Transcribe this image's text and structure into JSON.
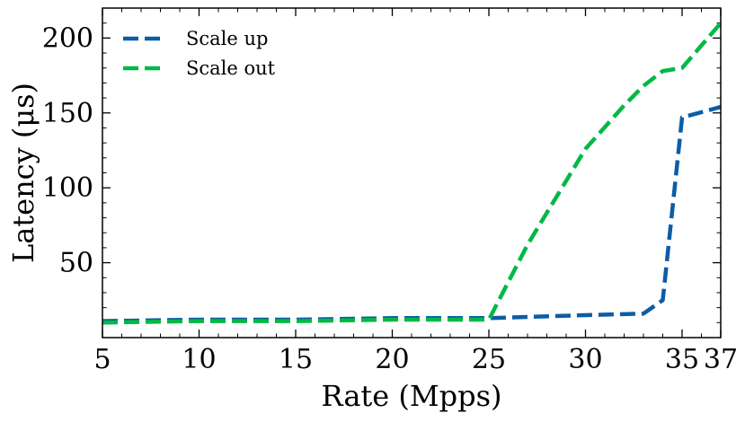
{
  "chart_data": {
    "type": "line",
    "title": "",
    "xlabel": "Rate (Mpps)",
    "ylabel": "Latency (μs)",
    "xlim": [
      5,
      37
    ],
    "ylim": [
      0,
      220
    ],
    "x_ticks": [
      {
        "value": 5,
        "label": "5"
      },
      {
        "value": 10,
        "label": "10"
      },
      {
        "value": 15,
        "label": "15"
      },
      {
        "value": 20,
        "label": "20"
      },
      {
        "value": 25,
        "label": "25"
      },
      {
        "value": 30,
        "label": "30"
      },
      {
        "value": 35,
        "label": "35"
      },
      {
        "value": 37,
        "label": "37"
      }
    ],
    "y_ticks": [
      {
        "value": 50,
        "label": "50"
      },
      {
        "value": 100,
        "label": "100"
      },
      {
        "value": 150,
        "label": "150"
      },
      {
        "value": 200,
        "label": "200"
      }
    ],
    "legend_position": "top-left",
    "series": [
      {
        "name": "Scale up",
        "color": "#0C5DA5",
        "dash": "dashed",
        "x": [
          5,
          10,
          15,
          20,
          25,
          30,
          33,
          34,
          35,
          37
        ],
        "values": [
          11,
          12,
          12,
          13,
          13,
          15,
          16,
          25,
          147,
          154
        ]
      },
      {
        "name": "Scale out",
        "color": "#00B945",
        "dash": "dashed",
        "x": [
          5,
          10,
          15,
          20,
          25,
          27,
          30,
          32,
          33,
          34,
          35,
          37
        ],
        "values": [
          10,
          11,
          11,
          12,
          12,
          62,
          126,
          155,
          168,
          178,
          180,
          210
        ]
      }
    ]
  }
}
